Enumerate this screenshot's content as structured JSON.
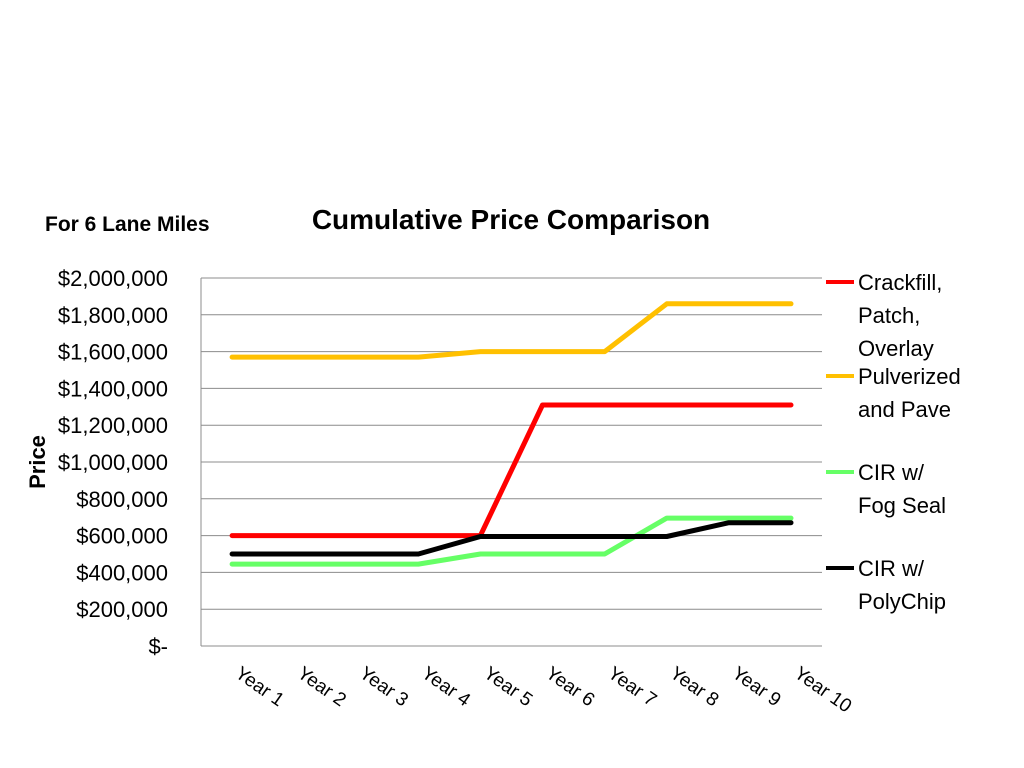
{
  "subtitle": "For 6 Lane Miles",
  "chart_data": {
    "type": "line",
    "title": "Cumulative Price Comparison",
    "xlabel": "",
    "ylabel": "Price",
    "categories": [
      "Year 1",
      "Year 2",
      "Year 3",
      "Year 4",
      "Year 5",
      "Year 6",
      "Year 7",
      "Year 8",
      "Year 9",
      "Year 10"
    ],
    "ylim": [
      0,
      2000000
    ],
    "yticks": [
      0,
      200000,
      400000,
      600000,
      800000,
      1000000,
      1200000,
      1400000,
      1600000,
      1800000,
      2000000
    ],
    "ytick_labels": [
      "$-",
      "$200,000",
      "$400,000",
      "$600,000",
      "$800,000",
      "$1,000,000",
      "$1,200,000",
      "$1,400,000",
      "$1,600,000",
      "$1,800,000",
      "$2,000,000"
    ],
    "grid": true,
    "legend_position": "right",
    "series": [
      {
        "name": "Crackfill, Patch, Overlay",
        "legend_lines": [
          "Crackfill,",
          "Patch,",
          "Overlay"
        ],
        "color": "#ff0000",
        "values": [
          600000,
          600000,
          600000,
          600000,
          600000,
          1310000,
          1310000,
          1310000,
          1310000,
          1310000
        ]
      },
      {
        "name": "Pulverized and Pave",
        "legend_lines": [
          "Pulverized",
          "and Pave"
        ],
        "color": "#ffc000",
        "values": [
          1570000,
          1570000,
          1570000,
          1570000,
          1600000,
          1600000,
          1600000,
          1860000,
          1860000,
          1860000
        ]
      },
      {
        "name": "CIR w/ Fog Seal",
        "legend_lines": [
          "CIR w/",
          "Fog Seal"
        ],
        "color": "#66ff66",
        "values": [
          445000,
          445000,
          445000,
          445000,
          500000,
          500000,
          500000,
          695000,
          695000,
          695000
        ]
      },
      {
        "name": "CIR w/ PolyChip",
        "legend_lines": [
          "CIR w/",
          "PolyChip"
        ],
        "color": "#000000",
        "values": [
          500000,
          500000,
          500000,
          500000,
          595000,
          595000,
          595000,
          595000,
          670000,
          670000
        ]
      }
    ]
  }
}
